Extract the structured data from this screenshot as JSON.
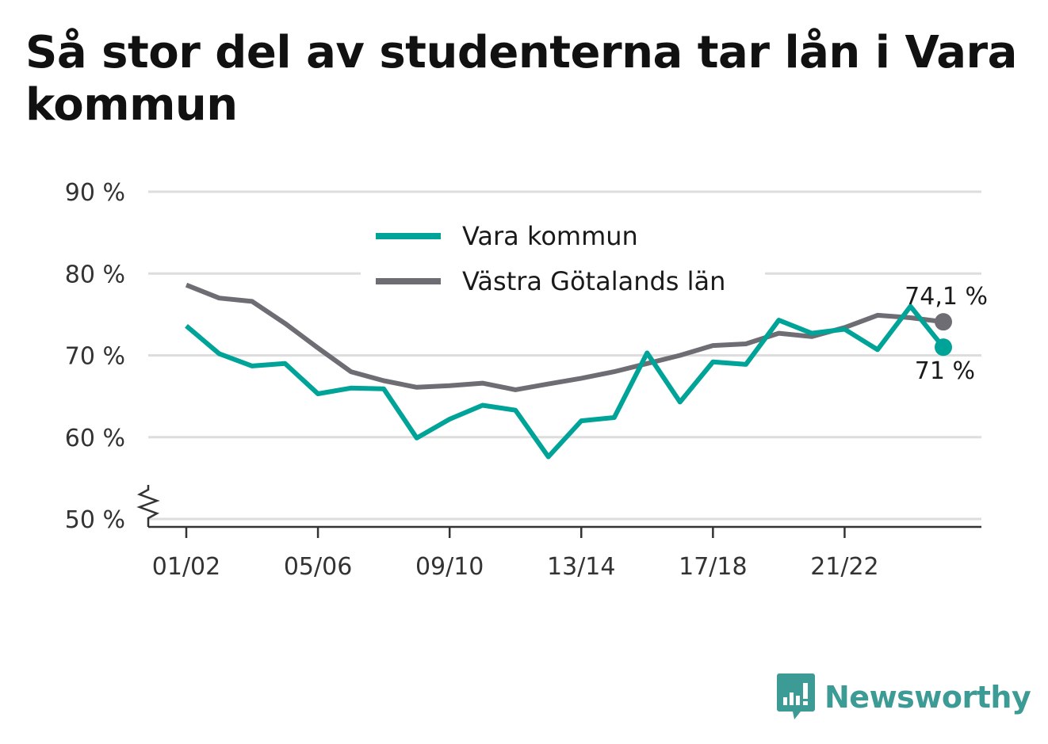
{
  "title": "Så stor del av studenterna tar lån i Vara kommun",
  "brand": {
    "name": "Newsworthy",
    "icon": "newsworthy-logo-icon",
    "color": "#3d9b96"
  },
  "chart_data": {
    "type": "line",
    "title": "Så stor del av studenterna tar lån i Vara kommun",
    "xlabel": "",
    "ylabel": "",
    "ylim": [
      50,
      90
    ],
    "y_axis_break": true,
    "yticks": [
      "50 %",
      "60 %",
      "70 %",
      "80 %",
      "90 %"
    ],
    "x": [
      "01/02",
      "02/03",
      "03/04",
      "04/05",
      "05/06",
      "06/07",
      "07/08",
      "08/09",
      "09/10",
      "10/11",
      "11/12",
      "12/13",
      "13/14",
      "14/15",
      "15/16",
      "16/17",
      "17/18",
      "18/19",
      "19/20",
      "20/21",
      "21/22",
      "22/23",
      "23/24",
      "24/25"
    ],
    "xtick_labels": [
      "01/02",
      "05/06",
      "09/10",
      "13/14",
      "17/18",
      "21/22"
    ],
    "grid": true,
    "legend": "top-center",
    "series": [
      {
        "name": "Vara kommun",
        "color": "#00a398",
        "end_label": "71 %",
        "values": [
          73.6,
          70.2,
          68.7,
          69.0,
          65.3,
          66.0,
          65.9,
          59.9,
          62.2,
          63.9,
          63.3,
          57.6,
          62.0,
          62.4,
          70.3,
          64.3,
          69.2,
          68.9,
          74.3,
          72.7,
          73.2,
          70.7,
          76.0,
          71.0
        ]
      },
      {
        "name": "Västra Götalands län",
        "color": "#6e6d74",
        "end_label": "74,1 %",
        "values": [
          78.6,
          77.0,
          76.6,
          73.9,
          70.9,
          68.0,
          66.9,
          66.1,
          66.3,
          66.6,
          65.8,
          66.5,
          67.2,
          68.0,
          69.0,
          70.0,
          71.2,
          71.4,
          72.7,
          72.3,
          73.4,
          74.9,
          74.6,
          74.1
        ]
      }
    ]
  }
}
